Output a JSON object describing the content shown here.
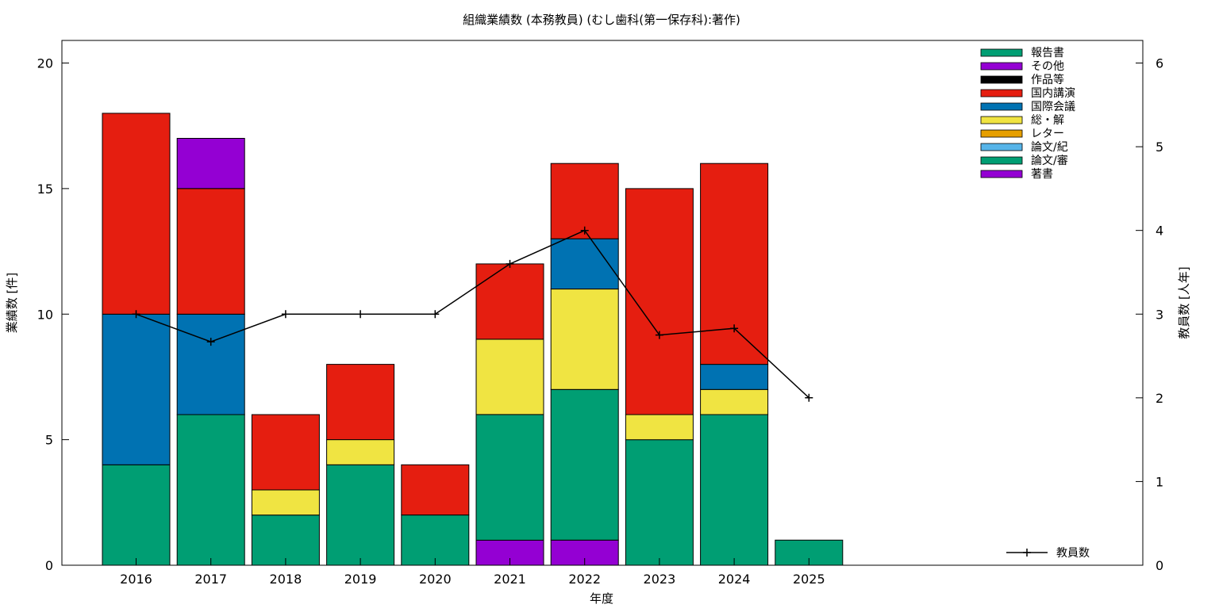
{
  "chart_data": {
    "type": "bar",
    "title": "組織業績数 (本務教員) (むし歯科(第一保存科):著作)",
    "xlabel": "年度",
    "ylabel": "業績数 [件]",
    "y2label": "教員数 [人年]",
    "stacked": true,
    "categories": [
      "2016",
      "2017",
      "2018",
      "2019",
      "2020",
      "2021",
      "2022",
      "2023",
      "2024",
      "2025"
    ],
    "ylim": [
      0,
      20.9
    ],
    "y2lim": [
      0,
      6.27
    ],
    "yticks": [
      "0",
      "5",
      "10",
      "15",
      "20"
    ],
    "y2ticks": [
      "0",
      "1",
      "2",
      "3",
      "4",
      "5",
      "6"
    ],
    "grid": false,
    "legend_position": "top-right",
    "series": [
      {
        "name": "著書",
        "color": "#9400d3",
        "values": [
          0,
          0,
          0,
          0,
          0,
          1,
          1,
          0,
          0,
          0
        ]
      },
      {
        "name": "論文/審",
        "color": "#009e73",
        "values": [
          4,
          6,
          2,
          4,
          2,
          5,
          6,
          5,
          6,
          1
        ]
      },
      {
        "name": "論文/紀",
        "color": "#56b4e9",
        "values": [
          0,
          0,
          0,
          0,
          0,
          0,
          0,
          0,
          0,
          0
        ]
      },
      {
        "name": "レター",
        "color": "#e69f00",
        "values": [
          0,
          0,
          0,
          0,
          0,
          0,
          0,
          0,
          0,
          0
        ]
      },
      {
        "name": "総・解",
        "color": "#f0e442",
        "values": [
          0,
          0,
          1,
          1,
          0,
          3,
          4,
          1,
          1,
          0
        ]
      },
      {
        "name": "国際会議",
        "color": "#0072b2",
        "values": [
          6,
          4,
          0,
          0,
          0,
          0,
          2,
          0,
          1,
          0
        ]
      },
      {
        "name": "国内講演",
        "color": "#e51e10",
        "values": [
          8,
          5,
          3,
          3,
          2,
          3,
          3,
          9,
          8,
          0
        ]
      },
      {
        "name": "作品等",
        "color": "#000000",
        "values": [
          0,
          0,
          0,
          0,
          0,
          0,
          0,
          0,
          0,
          0
        ]
      },
      {
        "name": "その他",
        "color": "#9400d3",
        "values": [
          0,
          2,
          0,
          0,
          0,
          0,
          0,
          0,
          0,
          0
        ]
      },
      {
        "name": "報告書",
        "color": "#009e73",
        "values": [
          0,
          0,
          0,
          0,
          0,
          0,
          0,
          0,
          0,
          0
        ]
      }
    ],
    "line_series": {
      "name": "教員数",
      "color": "#000000",
      "axis": "y2",
      "values": [
        3.0,
        2.67,
        3.0,
        3.0,
        3.0,
        3.6,
        4.0,
        2.75,
        2.83,
        2.0
      ]
    }
  }
}
